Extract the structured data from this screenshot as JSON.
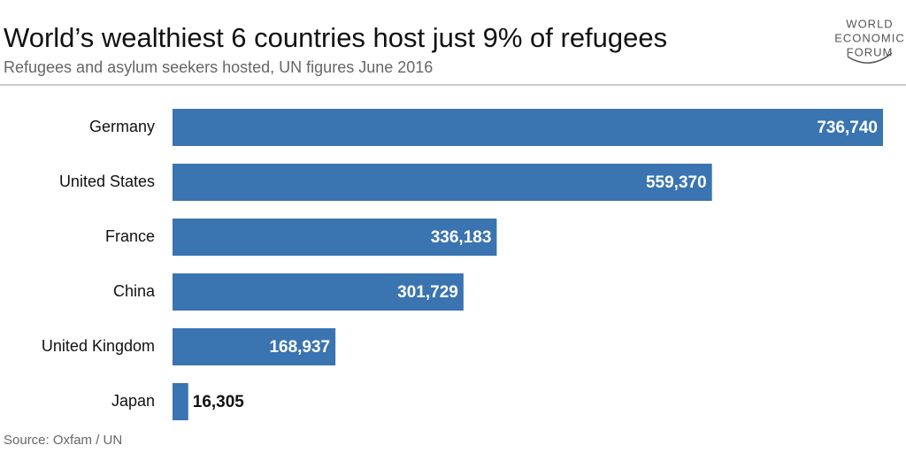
{
  "chart_data": {
    "type": "bar",
    "orientation": "horizontal",
    "title": "World’s wealthiest 6 countries host just 9% of refugees",
    "subtitle": "Refugees and asylum seekers hosted, UN figures June 2016",
    "source": "Source: Oxfam / UN",
    "logo": [
      "WORLD",
      "ECONOMIC",
      "FORUM"
    ],
    "categories": [
      "Germany",
      "United States",
      "France",
      "China",
      "United Kingdom",
      "Japan"
    ],
    "values": [
      736740,
      559370,
      336183,
      301729,
      168937,
      16305
    ],
    "value_labels": [
      "736,740",
      "559,370",
      "336,183",
      "301,729",
      "168,937",
      "16,305"
    ],
    "color": "#3a74b1"
  }
}
